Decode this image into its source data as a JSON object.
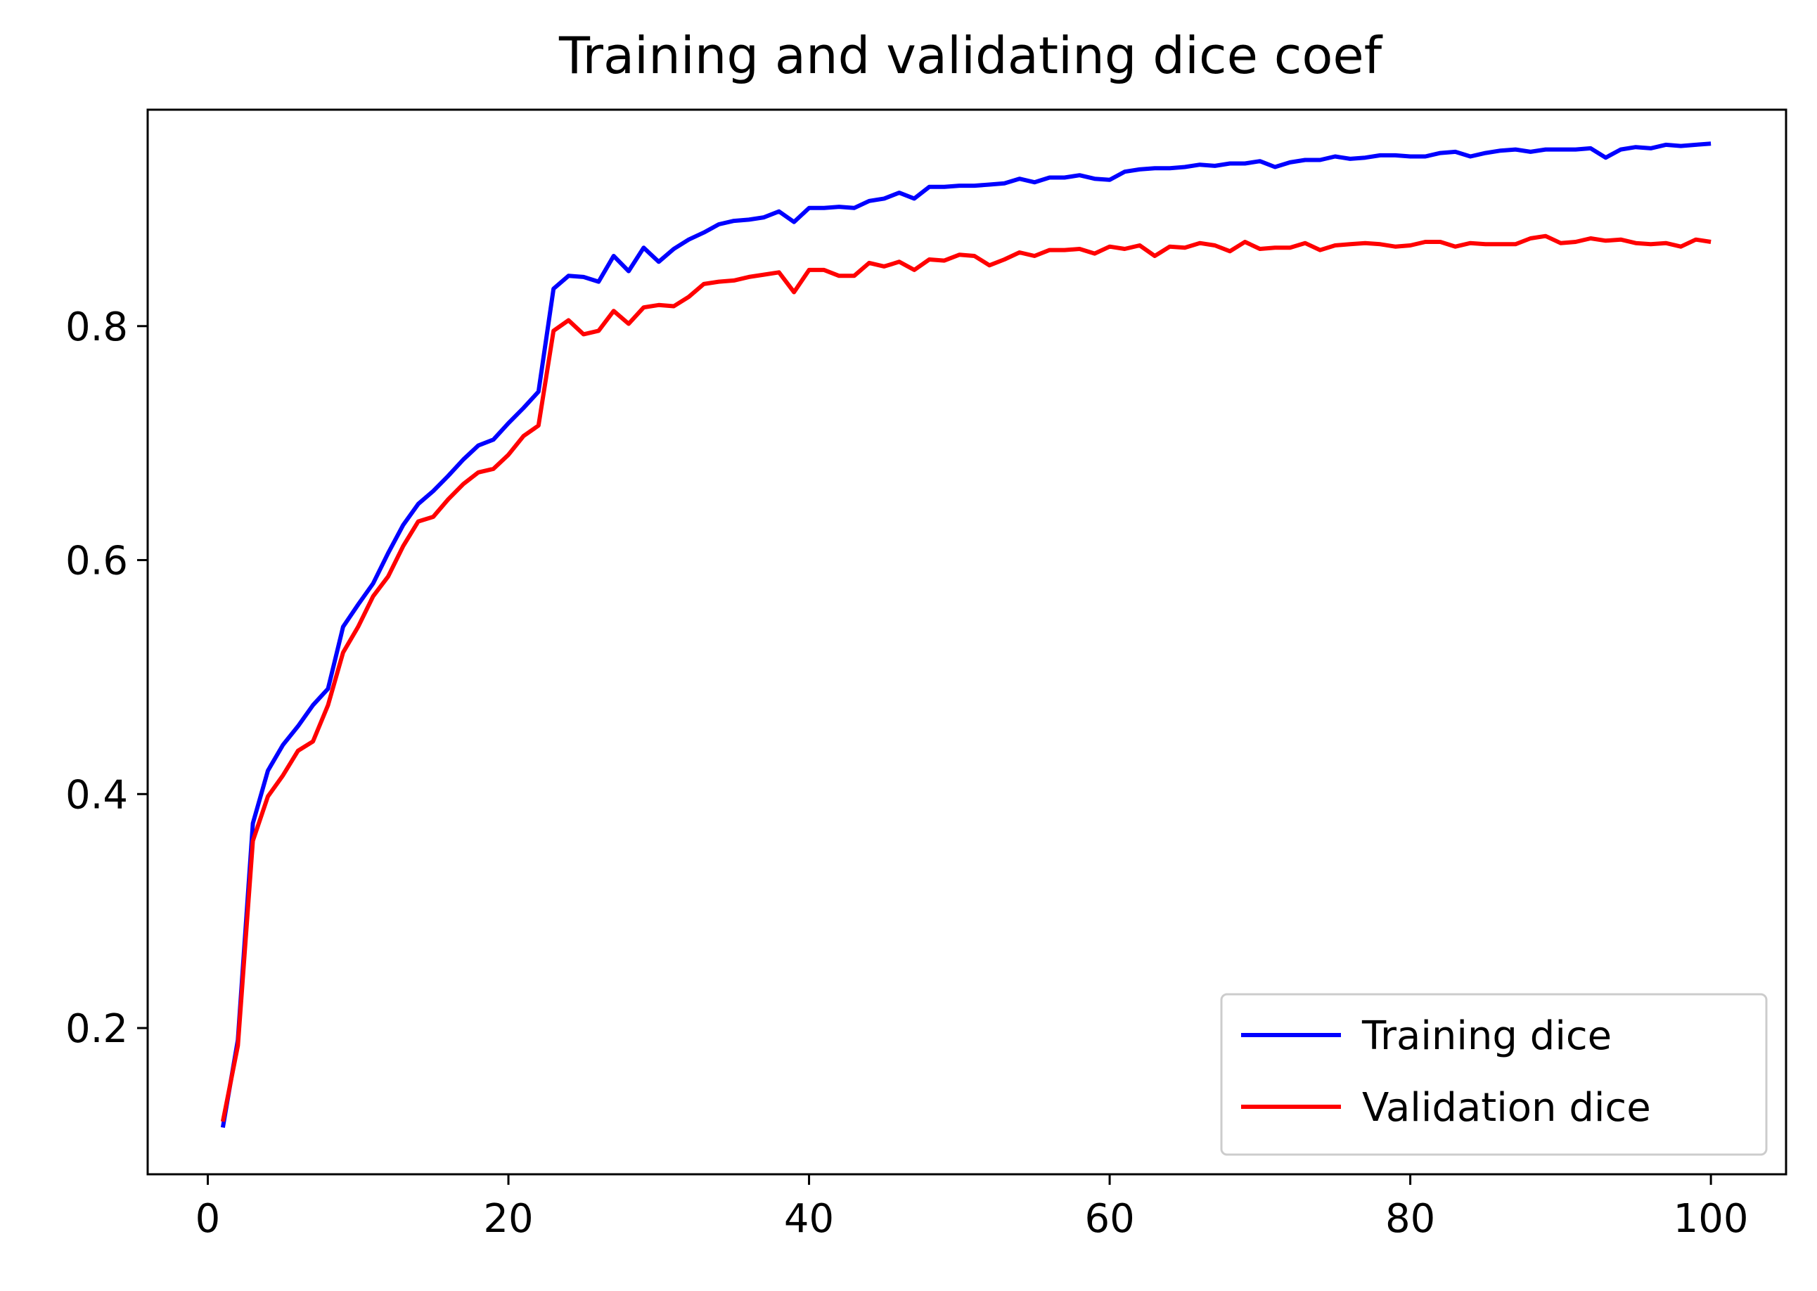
{
  "chart_data": {
    "type": "line",
    "title": "Training and validating dice coef",
    "xlabel": "",
    "ylabel": "",
    "xlim": [
      -4,
      105
    ],
    "ylim": [
      0.075,
      0.985
    ],
    "xticks": [
      0,
      20,
      40,
      60,
      80,
      100
    ],
    "yticks": [
      0.2,
      0.4,
      0.6,
      0.8
    ],
    "xtick_labels": [
      "0",
      "20",
      "40",
      "60",
      "80",
      "100"
    ],
    "ytick_labels": [
      "0.2",
      "0.4",
      "0.6",
      "0.8"
    ],
    "grid": false,
    "legend_position": "lower-right",
    "x": [
      1,
      2,
      3,
      4,
      5,
      6,
      7,
      8,
      9,
      10,
      11,
      12,
      13,
      14,
      15,
      16,
      17,
      18,
      19,
      20,
      21,
      22,
      23,
      24,
      25,
      26,
      27,
      28,
      29,
      30,
      31,
      32,
      33,
      34,
      35,
      36,
      37,
      38,
      39,
      40,
      41,
      42,
      43,
      44,
      45,
      46,
      47,
      48,
      49,
      50,
      51,
      52,
      53,
      54,
      55,
      56,
      57,
      58,
      59,
      60,
      61,
      62,
      63,
      64,
      65,
      66,
      67,
      68,
      69,
      70,
      71,
      72,
      73,
      74,
      75,
      76,
      77,
      78,
      79,
      80,
      81,
      82,
      83,
      84,
      85,
      86,
      87,
      88,
      89,
      90,
      91,
      92,
      93,
      94,
      95,
      96,
      97,
      98,
      99,
      100
    ],
    "series": [
      {
        "name": "Training dice",
        "color": "#0000ff",
        "values": [
          0.115,
          0.19,
          0.375,
          0.42,
          0.442,
          0.458,
          0.476,
          0.49,
          0.543,
          0.562,
          0.58,
          0.606,
          0.63,
          0.648,
          0.659,
          0.672,
          0.686,
          0.698,
          0.703,
          0.717,
          0.73,
          0.744,
          0.832,
          0.843,
          0.842,
          0.838,
          0.86,
          0.847,
          0.867,
          0.855,
          0.866,
          0.874,
          0.88,
          0.887,
          0.89,
          0.891,
          0.893,
          0.898,
          0.889,
          0.901,
          0.901,
          0.902,
          0.901,
          0.907,
          0.909,
          0.914,
          0.909,
          0.919,
          0.919,
          0.92,
          0.92,
          0.921,
          0.922,
          0.926,
          0.923,
          0.927,
          0.927,
          0.929,
          0.926,
          0.925,
          0.932,
          0.934,
          0.935,
          0.935,
          0.936,
          0.938,
          0.937,
          0.939,
          0.939,
          0.941,
          0.936,
          0.94,
          0.942,
          0.942,
          0.945,
          0.943,
          0.944,
          0.946,
          0.946,
          0.945,
          0.945,
          0.948,
          0.949,
          0.945,
          0.948,
          0.95,
          0.951,
          0.949,
          0.951,
          0.951,
          0.951,
          0.952,
          0.944,
          0.951,
          0.953,
          0.952,
          0.955,
          0.954,
          0.955,
          0.956
        ]
      },
      {
        "name": "Validation dice",
        "color": "#ff0000",
        "values": [
          0.12,
          0.185,
          0.36,
          0.398,
          0.416,
          0.437,
          0.445,
          0.476,
          0.521,
          0.543,
          0.569,
          0.586,
          0.612,
          0.633,
          0.637,
          0.652,
          0.665,
          0.675,
          0.678,
          0.69,
          0.706,
          0.715,
          0.796,
          0.805,
          0.793,
          0.796,
          0.813,
          0.802,
          0.816,
          0.818,
          0.817,
          0.825,
          0.836,
          0.838,
          0.839,
          0.842,
          0.844,
          0.846,
          0.829,
          0.848,
          0.848,
          0.843,
          0.843,
          0.854,
          0.851,
          0.855,
          0.848,
          0.857,
          0.856,
          0.861,
          0.86,
          0.852,
          0.857,
          0.863,
          0.86,
          0.865,
          0.865,
          0.866,
          0.862,
          0.868,
          0.866,
          0.869,
          0.86,
          0.868,
          0.867,
          0.871,
          0.869,
          0.864,
          0.872,
          0.866,
          0.867,
          0.867,
          0.871,
          0.865,
          0.869,
          0.87,
          0.871,
          0.87,
          0.868,
          0.869,
          0.872,
          0.872,
          0.868,
          0.871,
          0.87,
          0.87,
          0.87,
          0.875,
          0.877,
          0.871,
          0.872,
          0.875,
          0.873,
          0.874,
          0.871,
          0.87,
          0.871,
          0.868,
          0.874,
          0.872
        ]
      }
    ]
  }
}
